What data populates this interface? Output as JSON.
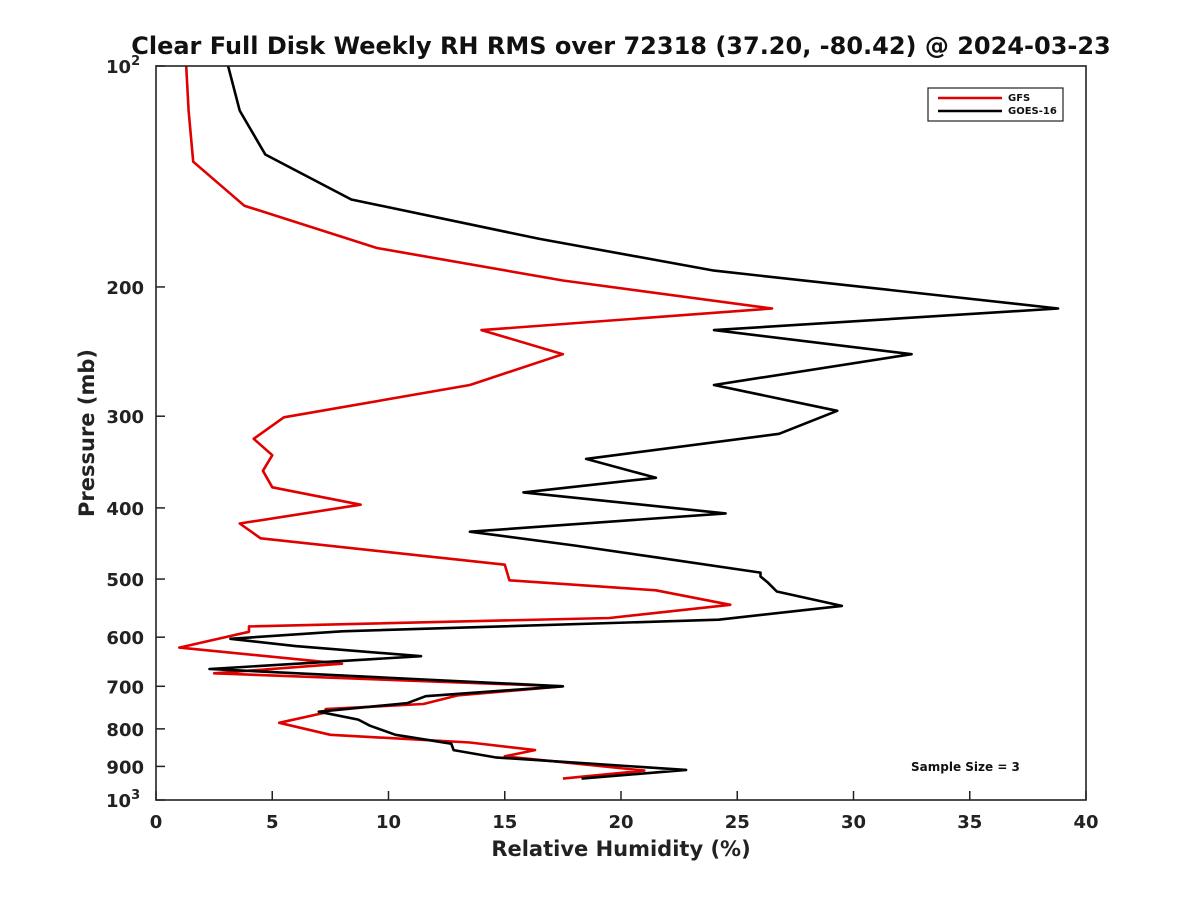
{
  "chart_data": {
    "type": "line",
    "title": "Clear Full Disk Weekly RH RMS over 72318 (37.20, -80.42) @ 2024-03-23",
    "xlabel": "Relative Humidity (%)",
    "ylabel": "Pressure (mb)",
    "xlim": [
      0,
      40
    ],
    "ylim": [
      100,
      1000
    ],
    "y_scale": "log",
    "y_reversed": true,
    "x_ticks": [
      "0",
      "5",
      "10",
      "15",
      "20",
      "25",
      "30",
      "35",
      "40"
    ],
    "y_tick_labels": [
      {
        "value": 100,
        "base": "10",
        "exp": "2"
      },
      {
        "value": 200,
        "label": "200"
      },
      {
        "value": 300,
        "label": "300"
      },
      {
        "value": 400,
        "label": "400"
      },
      {
        "value": 500,
        "label": "500"
      },
      {
        "value": 600,
        "label": "600"
      },
      {
        "value": 700,
        "label": "700"
      },
      {
        "value": 800,
        "label": "800"
      },
      {
        "value": 900,
        "label": "900"
      },
      {
        "value": 1000,
        "base": "10",
        "exp": "3"
      }
    ],
    "grid": false,
    "legend_position": "top-right",
    "annotation": "Sample Size = 3",
    "series": [
      {
        "name": "GFS",
        "color": "#e00000",
        "points": [
          [
            1.3,
            100
          ],
          [
            1.4,
            115
          ],
          [
            1.6,
            135
          ],
          [
            3.8,
            155
          ],
          [
            9.5,
            177
          ],
          [
            17.5,
            196
          ],
          [
            26.5,
            214
          ],
          [
            14.0,
            229
          ],
          [
            17.5,
            247
          ],
          [
            13.5,
            272
          ],
          [
            5.5,
            301
          ],
          [
            4.2,
            322
          ],
          [
            5.0,
            339
          ],
          [
            4.6,
            356
          ],
          [
            5.0,
            375
          ],
          [
            8.8,
            396
          ],
          [
            3.6,
            420
          ],
          [
            4.5,
            440
          ],
          [
            15.0,
            478
          ],
          [
            15.2,
            502
          ],
          [
            21.5,
            518
          ],
          [
            24.7,
            542
          ],
          [
            19.5,
            565
          ],
          [
            4.0,
            580
          ],
          [
            4.0,
            590
          ],
          [
            1.0,
            620
          ],
          [
            8.0,
            652
          ],
          [
            2.5,
            672
          ],
          [
            17.5,
            700
          ],
          [
            13.0,
            720
          ],
          [
            11.5,
            740
          ],
          [
            7.3,
            752
          ],
          [
            7.3,
            760
          ],
          [
            5.3,
            785
          ],
          [
            7.5,
            815
          ],
          [
            13.5,
            835
          ],
          [
            16.3,
            855
          ],
          [
            15.0,
            872
          ],
          [
            21.0,
            912
          ],
          [
            17.5,
            935
          ]
        ]
      },
      {
        "name": "GOES-16",
        "color": "#000000",
        "points": [
          [
            3.1,
            100
          ],
          [
            3.6,
            115
          ],
          [
            4.7,
            132
          ],
          [
            8.4,
            152
          ],
          [
            16.5,
            172
          ],
          [
            24.0,
            190
          ],
          [
            38.8,
            214
          ],
          [
            24.0,
            229
          ],
          [
            32.5,
            247
          ],
          [
            24.0,
            272
          ],
          [
            29.3,
            295
          ],
          [
            26.8,
            317
          ],
          [
            18.5,
            343
          ],
          [
            21.5,
            364
          ],
          [
            15.8,
            381
          ],
          [
            24.5,
            407
          ],
          [
            13.5,
            431
          ],
          [
            18.0,
            450
          ],
          [
            21.5,
            467
          ],
          [
            26.0,
            490
          ],
          [
            26.0,
            496
          ],
          [
            26.3,
            505
          ],
          [
            26.7,
            520
          ],
          [
            29.5,
            544
          ],
          [
            24.2,
            568
          ],
          [
            8.0,
            589
          ],
          [
            3.2,
            603
          ],
          [
            6.0,
            617
          ],
          [
            11.4,
            637
          ],
          [
            2.3,
            663
          ],
          [
            17.5,
            700
          ],
          [
            11.6,
            722
          ],
          [
            10.8,
            738
          ],
          [
            7.0,
            758
          ],
          [
            8.7,
            777
          ],
          [
            9.2,
            792
          ],
          [
            10.3,
            815
          ],
          [
            12.7,
            838
          ],
          [
            12.8,
            855
          ],
          [
            14.6,
            875
          ],
          [
            22.8,
            910
          ],
          [
            18.3,
            935
          ]
        ]
      }
    ]
  }
}
